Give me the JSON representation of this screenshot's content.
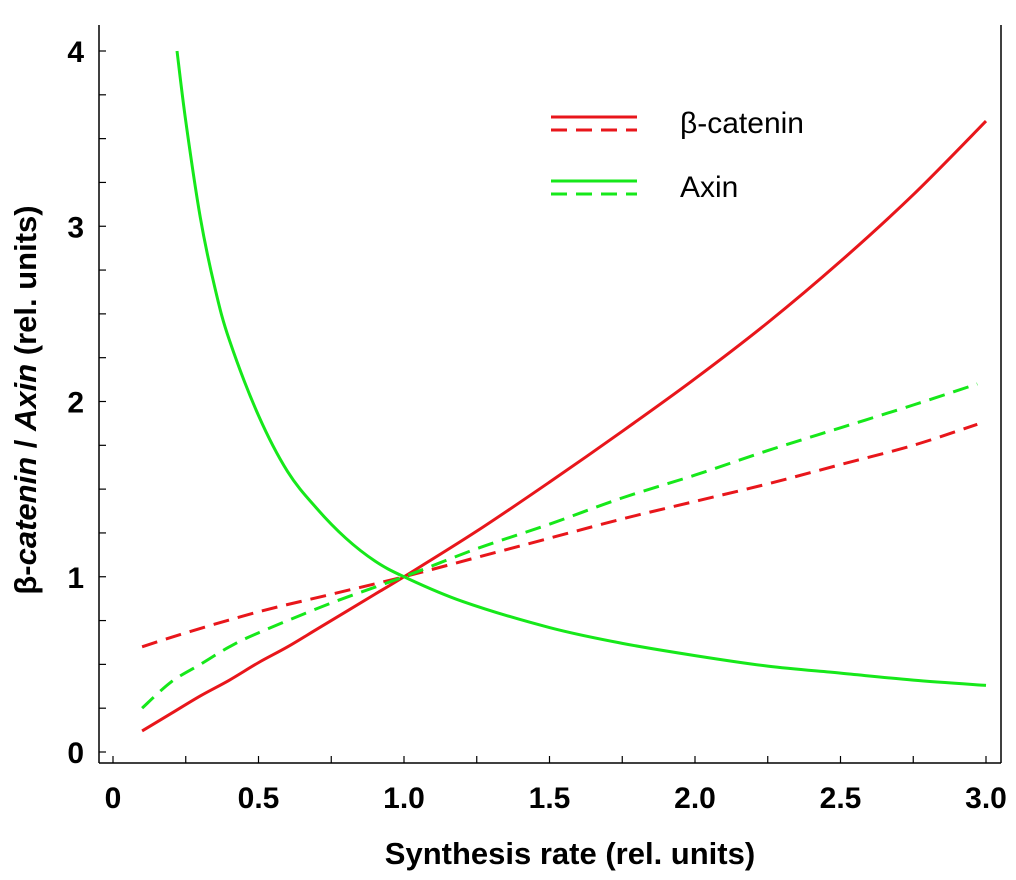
{
  "chart_data": {
    "type": "line",
    "title": "",
    "xlabel": "Synthesis rate (rel. units)",
    "ylabel_parts": {
      "prefix": "β-",
      "italic1": "catenin",
      "sep": " / ",
      "italic2": "Axin",
      "suffix": " (rel. units)"
    },
    "xlim": [
      0,
      3.1
    ],
    "ylim": [
      0,
      4.05
    ],
    "x_ticks": [
      {
        "value": 0,
        "label": "0"
      },
      {
        "value": 0.5,
        "label": "0.5"
      },
      {
        "value": 1.0,
        "label": "1.0"
      },
      {
        "value": 1.5,
        "label": "1.5"
      },
      {
        "value": 2.0,
        "label": "2.0"
      },
      {
        "value": 2.5,
        "label": "2.5"
      },
      {
        "value": 3.0,
        "label": "3.0"
      }
    ],
    "x_minor_step": 0.25,
    "y_ticks": [
      {
        "value": 0,
        "label": "0"
      },
      {
        "value": 1,
        "label": "1"
      },
      {
        "value": 2,
        "label": "2"
      },
      {
        "value": 3,
        "label": "3"
      },
      {
        "value": 4,
        "label": "4"
      }
    ],
    "y_minor_step": 0.25,
    "grid": false,
    "legend": {
      "placement": "top-right",
      "entries": [
        {
          "label": "β-catenin",
          "color": "#e8161b"
        },
        {
          "label": "Axin",
          "color": "#16e81a"
        }
      ]
    },
    "series": [
      {
        "group": "β-catenin",
        "style": "solid",
        "color": "#e8161b",
        "x": [
          0.1,
          0.2,
          0.3,
          0.4,
          0.5,
          0.6,
          0.7,
          0.8,
          0.9,
          1.0,
          1.25,
          1.5,
          1.75,
          2.0,
          2.25,
          2.5,
          2.75,
          3.0
        ],
        "y": [
          0.12,
          0.22,
          0.32,
          0.41,
          0.51,
          0.6,
          0.7,
          0.8,
          0.9,
          1.0,
          1.26,
          1.54,
          1.83,
          2.13,
          2.45,
          2.8,
          3.18,
          3.6
        ]
      },
      {
        "group": "β-catenin",
        "style": "dashed",
        "color": "#e8161b",
        "x": [
          0.1,
          0.25,
          0.5,
          0.75,
          1.0,
          1.25,
          1.5,
          1.75,
          2.0,
          2.25,
          2.5,
          2.75,
          2.97
        ],
        "y": [
          0.6,
          0.68,
          0.8,
          0.9,
          1.0,
          1.11,
          1.22,
          1.33,
          1.43,
          1.53,
          1.64,
          1.75,
          1.87
        ]
      },
      {
        "group": "Axin",
        "style": "solid",
        "color": "#16e81a",
        "x": [
          0.22,
          0.25,
          0.3,
          0.35,
          0.4,
          0.5,
          0.6,
          0.7,
          0.8,
          0.9,
          1.0,
          1.2,
          1.5,
          1.75,
          2.0,
          2.25,
          2.5,
          2.75,
          3.0
        ],
        "y": [
          4.0,
          3.6,
          3.05,
          2.65,
          2.35,
          1.92,
          1.6,
          1.39,
          1.22,
          1.09,
          1.0,
          0.86,
          0.71,
          0.62,
          0.55,
          0.49,
          0.45,
          0.41,
          0.38
        ]
      },
      {
        "group": "Axin",
        "style": "dashed",
        "color": "#16e81a",
        "x": [
          0.1,
          0.2,
          0.3,
          0.4,
          0.5,
          0.75,
          1.0,
          1.25,
          1.5,
          1.75,
          2.0,
          2.25,
          2.5,
          2.75,
          2.97
        ],
        "y": [
          0.25,
          0.4,
          0.5,
          0.6,
          0.68,
          0.85,
          1.0,
          1.16,
          1.3,
          1.45,
          1.58,
          1.72,
          1.85,
          1.98,
          2.1
        ]
      }
    ]
  }
}
